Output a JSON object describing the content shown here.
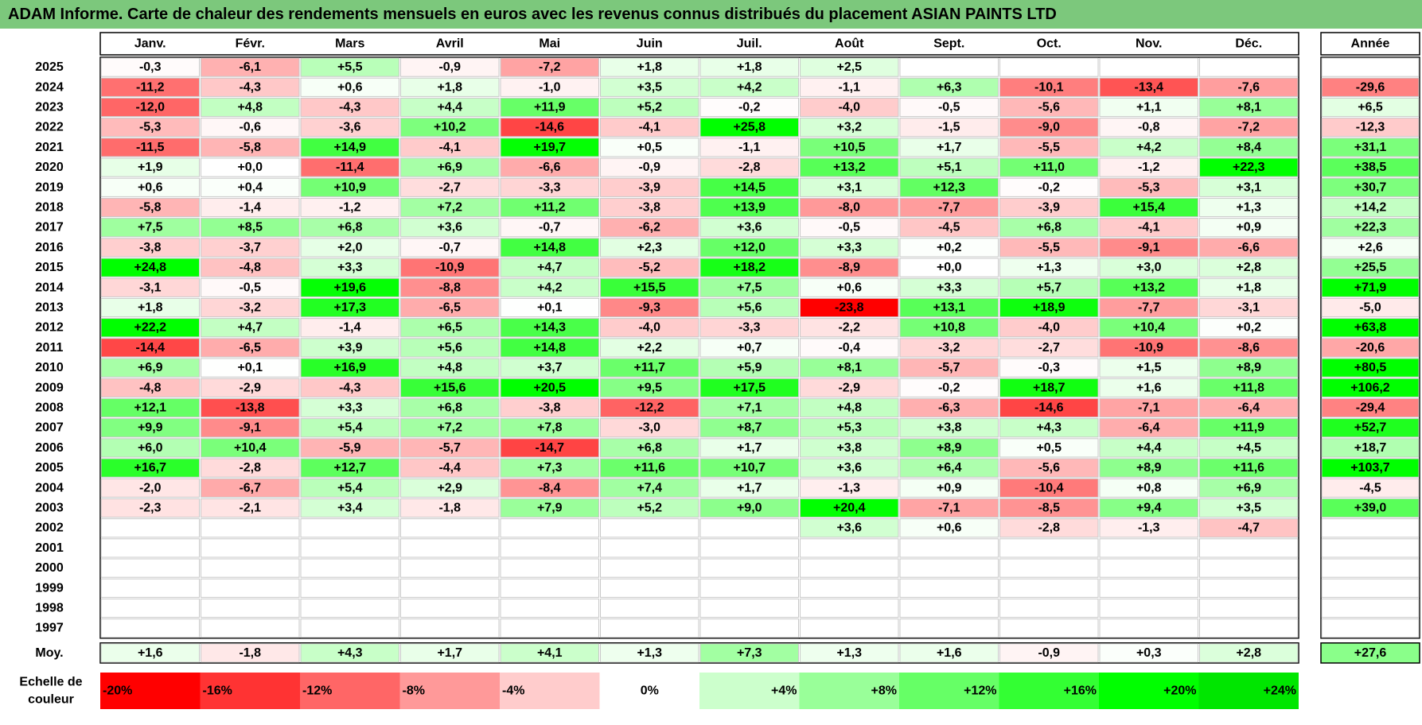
{
  "title": "ADAM Informe. Carte de chaleur des rendements mensuels en euros avec les revenus connus distribués du placement ASIAN PAINTS LTD",
  "chart_data": {
    "type": "heatmap",
    "months": [
      "Janv.",
      "Févr.",
      "Mars",
      "Avril",
      "Mai",
      "Juin",
      "Juil.",
      "Août",
      "Sept.",
      "Oct.",
      "Nov.",
      "Déc."
    ],
    "year_header": "Année",
    "rows": [
      {
        "year": "2025",
        "values": [
          "-0,3",
          "-6,1",
          "+5,5",
          "-0,9",
          "-7,2",
          "+1,8",
          "+1,8",
          "+2,5",
          "",
          "",
          "",
          ""
        ],
        "annual": ""
      },
      {
        "year": "2024",
        "values": [
          "-11,2",
          "-4,3",
          "+0,6",
          "+1,8",
          "-1,0",
          "+3,5",
          "+4,2",
          "-1,1",
          "+6,3",
          "-10,1",
          "-13,4",
          "-7,6"
        ],
        "annual": "-29,6"
      },
      {
        "year": "2023",
        "values": [
          "-12,0",
          "+4,8",
          "-4,3",
          "+4,4",
          "+11,9",
          "+5,2",
          "-0,2",
          "-4,0",
          "-0,5",
          "-5,6",
          "+1,1",
          "+8,1"
        ],
        "annual": "+6,5"
      },
      {
        "year": "2022",
        "values": [
          "-5,3",
          "-0,6",
          "-3,6",
          "+10,2",
          "-14,6",
          "-4,1",
          "+25,8",
          "+3,2",
          "-1,5",
          "-9,0",
          "-0,8",
          "-7,2"
        ],
        "annual": "-12,3"
      },
      {
        "year": "2021",
        "values": [
          "-11,5",
          "-5,8",
          "+14,9",
          "-4,1",
          "+19,7",
          "+0,5",
          "-1,1",
          "+10,5",
          "+1,7",
          "-5,5",
          "+4,2",
          "+8,4"
        ],
        "annual": "+31,1"
      },
      {
        "year": "2020",
        "values": [
          "+1,9",
          "+0,0",
          "-11,4",
          "+6,9",
          "-6,6",
          "-0,9",
          "-2,8",
          "+13,2",
          "+5,1",
          "+11,0",
          "-1,2",
          "+22,3"
        ],
        "annual": "+38,5"
      },
      {
        "year": "2019",
        "values": [
          "+0,6",
          "+0,4",
          "+10,9",
          "-2,7",
          "-3,3",
          "-3,9",
          "+14,5",
          "+3,1",
          "+12,3",
          "-0,2",
          "-5,3",
          "+3,1"
        ],
        "annual": "+30,7"
      },
      {
        "year": "2018",
        "values": [
          "-5,8",
          "-1,4",
          "-1,2",
          "+7,2",
          "+11,2",
          "-3,8",
          "+13,9",
          "-8,0",
          "-7,7",
          "-3,9",
          "+15,4",
          "+1,3"
        ],
        "annual": "+14,2"
      },
      {
        "year": "2017",
        "values": [
          "+7,5",
          "+8,5",
          "+6,8",
          "+3,6",
          "-0,7",
          "-6,2",
          "+3,6",
          "-0,5",
          "-4,5",
          "+6,8",
          "-4,1",
          "+0,9"
        ],
        "annual": "+22,3"
      },
      {
        "year": "2016",
        "values": [
          "-3,8",
          "-3,7",
          "+2,0",
          "-0,7",
          "+14,8",
          "+2,3",
          "+12,0",
          "+3,3",
          "+0,2",
          "-5,5",
          "-9,1",
          "-6,6"
        ],
        "annual": "+2,6"
      },
      {
        "year": "2015",
        "values": [
          "+24,8",
          "-4,8",
          "+3,3",
          "-10,9",
          "+4,7",
          "-5,2",
          "+18,2",
          "-8,9",
          "+0,0",
          "+1,3",
          "+3,0",
          "+2,8"
        ],
        "annual": "+25,5"
      },
      {
        "year": "2014",
        "values": [
          "-3,1",
          "-0,5",
          "+19,6",
          "-8,8",
          "+4,2",
          "+15,5",
          "+7,5",
          "+0,6",
          "+3,3",
          "+5,7",
          "+13,2",
          "+1,8"
        ],
        "annual": "+71,9"
      },
      {
        "year": "2013",
        "values": [
          "+1,8",
          "-3,2",
          "+17,3",
          "-6,5",
          "+0,1",
          "-9,3",
          "+5,6",
          "-23,8",
          "+13,1",
          "+18,9",
          "-7,7",
          "-3,1"
        ],
        "annual": "-5,0"
      },
      {
        "year": "2012",
        "values": [
          "+22,2",
          "+4,7",
          "-1,4",
          "+6,5",
          "+14,3",
          "-4,0",
          "-3,3",
          "-2,2",
          "+10,8",
          "-4,0",
          "+10,4",
          "+0,2"
        ],
        "annual": "+63,8"
      },
      {
        "year": "2011",
        "values": [
          "-14,4",
          "-6,5",
          "+3,9",
          "+5,6",
          "+14,8",
          "+2,2",
          "+0,7",
          "-0,4",
          "-3,2",
          "-2,7",
          "-10,9",
          "-8,6"
        ],
        "annual": "-20,6"
      },
      {
        "year": "2010",
        "values": [
          "+6,9",
          "+0,1",
          "+16,9",
          "+4,8",
          "+3,7",
          "+11,7",
          "+5,9",
          "+8,1",
          "-5,7",
          "-0,3",
          "+1,5",
          "+8,9"
        ],
        "annual": "+80,5"
      },
      {
        "year": "2009",
        "values": [
          "-4,8",
          "-2,9",
          "-4,3",
          "+15,6",
          "+20,5",
          "+9,5",
          "+17,5",
          "-2,9",
          "-0,2",
          "+18,7",
          "+1,6",
          "+11,8"
        ],
        "annual": "+106,2"
      },
      {
        "year": "2008",
        "values": [
          "+12,1",
          "-13,8",
          "+3,3",
          "+6,8",
          "-3,8",
          "-12,2",
          "+7,1",
          "+4,8",
          "-6,3",
          "-14,6",
          "-7,1",
          "-6,4"
        ],
        "annual": "-29,4"
      },
      {
        "year": "2007",
        "values": [
          "+9,9",
          "-9,1",
          "+5,4",
          "+7,2",
          "+7,8",
          "-3,0",
          "+8,7",
          "+5,3",
          "+3,8",
          "+4,3",
          "-6,4",
          "+11,9"
        ],
        "annual": "+52,7"
      },
      {
        "year": "2006",
        "values": [
          "+6,0",
          "+10,4",
          "-5,9",
          "-5,7",
          "-14,7",
          "+6,8",
          "+1,7",
          "+3,8",
          "+8,9",
          "+0,5",
          "+4,4",
          "+4,5"
        ],
        "annual": "+18,7"
      },
      {
        "year": "2005",
        "values": [
          "+16,7",
          "-2,8",
          "+12,7",
          "-4,4",
          "+7,3",
          "+11,6",
          "+10,7",
          "+3,6",
          "+6,4",
          "-5,6",
          "+8,9",
          "+11,6"
        ],
        "annual": "+103,7"
      },
      {
        "year": "2004",
        "values": [
          "-2,0",
          "-6,7",
          "+5,4",
          "+2,9",
          "-8,4",
          "+7,4",
          "+1,7",
          "-1,3",
          "+0,9",
          "-10,4",
          "+0,8",
          "+6,9"
        ],
        "annual": "-4,5"
      },
      {
        "year": "2003",
        "values": [
          "-2,3",
          "-2,1",
          "+3,4",
          "-1,8",
          "+7,9",
          "+5,2",
          "+9,0",
          "+20,4",
          "-7,1",
          "-8,5",
          "+9,4",
          "+3,5"
        ],
        "annual": "+39,0"
      },
      {
        "year": "2002",
        "values": [
          "",
          "",
          "",
          "",
          "",
          "",
          "",
          "+3,6",
          "+0,6",
          "-2,8",
          "-1,3",
          "-4,7"
        ],
        "annual": ""
      },
      {
        "year": "2001",
        "values": [
          "",
          "",
          "",
          "",
          "",
          "",
          "",
          "",
          "",
          "",
          "",
          ""
        ],
        "annual": ""
      },
      {
        "year": "2000",
        "values": [
          "",
          "",
          "",
          "",
          "",
          "",
          "",
          "",
          "",
          "",
          "",
          ""
        ],
        "annual": ""
      },
      {
        "year": "1999",
        "values": [
          "",
          "",
          "",
          "",
          "",
          "",
          "",
          "",
          "",
          "",
          "",
          ""
        ],
        "annual": ""
      },
      {
        "year": "1998",
        "values": [
          "",
          "",
          "",
          "",
          "",
          "",
          "",
          "",
          "",
          "",
          "",
          ""
        ],
        "annual": ""
      },
      {
        "year": "1997",
        "values": [
          "",
          "",
          "",
          "",
          "",
          "",
          "",
          "",
          "",
          "",
          "",
          ""
        ],
        "annual": ""
      }
    ],
    "average": {
      "label": "Moy.",
      "values": [
        "+1,6",
        "-1,8",
        "+4,3",
        "+1,7",
        "+4,1",
        "+1,3",
        "+7,3",
        "+1,3",
        "+1,6",
        "-0,9",
        "+0,3",
        "+2,8"
      ],
      "annual": "+27,6"
    },
    "scale": {
      "label_line1": "Echelle de",
      "label_line2": "couleur",
      "stops": [
        {
          "label": "-20%",
          "color": "#ff0000"
        },
        {
          "label": "-16%",
          "color": "#ff3333"
        },
        {
          "label": "-12%",
          "color": "#ff6666"
        },
        {
          "label": "-8%",
          "color": "#ff9999"
        },
        {
          "label": "-4%",
          "color": "#ffcccc"
        },
        {
          "label": "0%",
          "color": "#ffffff"
        },
        {
          "label": "+4%",
          "color": "#ccffcc"
        },
        {
          "label": "+8%",
          "color": "#99ff99"
        },
        {
          "label": "+12%",
          "color": "#66ff66"
        },
        {
          "label": "+16%",
          "color": "#33ff33"
        },
        {
          "label": "+20%",
          "color": "#00ff00"
        },
        {
          "label": "+24%",
          "color": "#00e600"
        }
      ]
    }
  }
}
